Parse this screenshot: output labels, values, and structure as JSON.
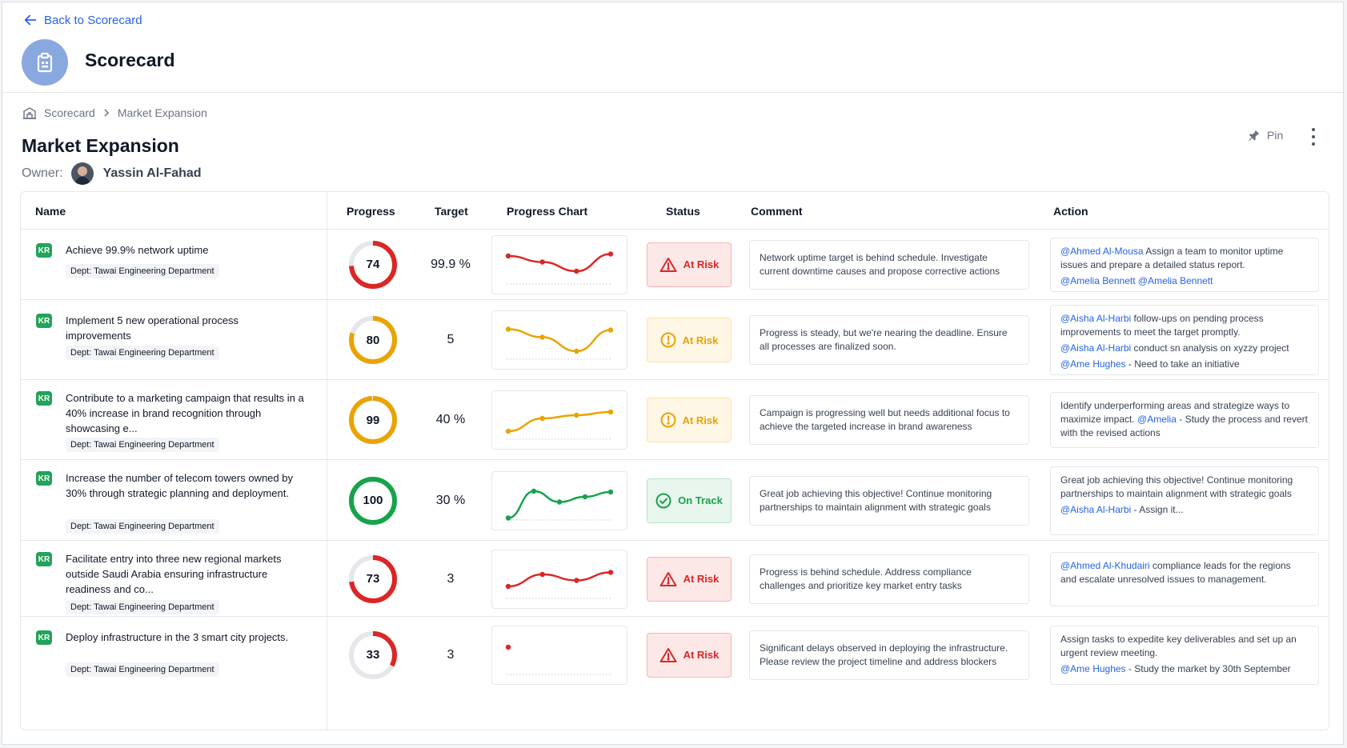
{
  "header": {
    "back_label": "Back to Scorecard",
    "app_title": "Scorecard"
  },
  "breadcrumb": {
    "root": "Scorecard",
    "current": "Market Expansion"
  },
  "page": {
    "title": "Market Expansion",
    "owner_label": "Owner:",
    "owner_name": "Yassin Al-Fahad",
    "pin_label": "Pin"
  },
  "table": {
    "columns": {
      "name": "Name",
      "progress": "Progress",
      "target": "Target",
      "chart": "Progress Chart",
      "status": "Status",
      "comment": "Comment",
      "action": "Action"
    },
    "rows": [
      {
        "badge": "KR",
        "title": "Achieve 99.9% network uptime",
        "dept": "Dept: Tawai Engineering Department",
        "progress": "74",
        "progress_value": 74,
        "progress_color": "#dc2626",
        "target": "99.9 %",
        "chart": {
          "color": "#dc2626",
          "points": [
            0.3,
            0.45,
            0.68,
            0.25
          ]
        },
        "status": {
          "label": "At Risk",
          "kind": "risk"
        },
        "comment": "Network uptime target is behind schedule. Investigate current downtime causes and propose corrective actions",
        "action": [
          [
            {
              "m": "@Ahmed Al-Mousa"
            },
            {
              "t": " Assign a team to monitor uptime issues and prepare a detailed status report."
            }
          ],
          [
            {
              "m": "@Amelia Bennett"
            },
            {
              "t": "  "
            },
            {
              "m": "@Amelia Bennett"
            }
          ]
        ]
      },
      {
        "badge": "KR",
        "title": "Implement 5 new operational process improvements",
        "dept": "Dept: Tawai Engineering Department",
        "progress": "80",
        "progress_value": 80,
        "progress_color": "#eaa300",
        "target": "5",
        "chart": {
          "color": "#eaa300",
          "points": [
            0.25,
            0.45,
            0.8,
            0.27
          ]
        },
        "status": {
          "label": "At Risk",
          "kind": "warn"
        },
        "comment": "Progress is steady, but we're nearing the deadline. Ensure all processes are finalized soon.",
        "action": [
          [
            {
              "m": "@Aisha Al-Harbi"
            },
            {
              "t": " follow-ups on pending process improvements to meet the target promptly."
            }
          ],
          [
            {
              "m": "@Aisha Al-Harbi"
            },
            {
              "t": " conduct sn analysis on xyzzy project"
            }
          ],
          [
            {
              "m": "@Ame Hughes"
            },
            {
              "t": " - Need to take an initiative"
            }
          ]
        ]
      },
      {
        "badge": "KR",
        "title": "Contribute to a marketing campaign that results in a 40% increase in brand recognition through showcasing e...",
        "dept": "Dept: Tawai Engineering Department",
        "progress": "99",
        "progress_value": 99,
        "progress_color": "#eaa300",
        "target": "40 %",
        "chart": {
          "color": "#eaa300",
          "points": [
            0.8,
            0.48,
            0.4,
            0.32
          ]
        },
        "status": {
          "label": "At Risk",
          "kind": "warn"
        },
        "comment": "Campaign is progressing well but needs additional focus to achieve the targeted increase in brand awareness",
        "action": [
          [
            {
              "t": "Identify underperforming areas and strategize ways to maximize impact. "
            },
            {
              "m": "@Amelia"
            },
            {
              "t": " - Study the process and revert with the revised actions"
            }
          ]
        ]
      },
      {
        "badge": "KR",
        "title": "Increase the number of telecom towers owned by 30% through strategic planning and deployment.",
        "dept": "Dept: Tawai Engineering Department",
        "progress": "100",
        "progress_value": 100,
        "progress_color": "#16a34a",
        "target": "30 %",
        "chart": {
          "color": "#16a34a",
          "points": [
            0.95,
            0.28,
            0.55,
            0.42,
            0.3
          ]
        },
        "status": {
          "label": "On Track",
          "kind": "track"
        },
        "comment": "Great job achieving this objective! Continue monitoring partnerships to maintain alignment with strategic goals",
        "action": [
          [
            {
              "t": "Great job achieving this objective! Continue monitoring partnerships to maintain alignment with strategic goals"
            }
          ],
          [
            {
              "m": "@Aisha Al-Harbi"
            },
            {
              "t": " - Assign it..."
            }
          ]
        ]
      },
      {
        "badge": "KR",
        "title": "Facilitate entry into three new regional markets outside Saudi Arabia ensuring infrastructure readiness and co...",
        "dept": "Dept: Tawai Engineering Department",
        "progress": "73",
        "progress_value": 73,
        "progress_color": "#dc2626",
        "target": "3",
        "chart": {
          "color": "#dc2626",
          "points": [
            0.7,
            0.4,
            0.55,
            0.35
          ]
        },
        "status": {
          "label": "At Risk",
          "kind": "risk"
        },
        "comment": "Progress is behind schedule. Address compliance challenges and prioritize key market entry tasks",
        "action": [
          [
            {
              "m": "@Ahmed Al-Khudairi"
            },
            {
              "t": " compliance leads for the regions and escalate unresolved issues to management."
            }
          ]
        ]
      },
      {
        "badge": "KR",
        "title": "Deploy infrastructure in the 3 smart city projects.",
        "dept": "Dept: Tawai Engineering Department",
        "progress": "33",
        "progress_value": 33,
        "progress_color": "#dc2626",
        "target": "3",
        "chart": {
          "color": "#dc2626",
          "points": [
            0.32
          ]
        },
        "status": {
          "label": "At Risk",
          "kind": "risk"
        },
        "comment": "Significant delays observed in deploying the infrastructure. Please review the project timeline and address blockers",
        "action": [
          [
            {
              "t": "Assign tasks to expedite key deliverables and set up an urgent review meeting."
            }
          ],
          [
            {
              "m": "@Ame Hughes"
            },
            {
              "t": " - Study the market by 30th September"
            }
          ]
        ]
      }
    ]
  }
}
